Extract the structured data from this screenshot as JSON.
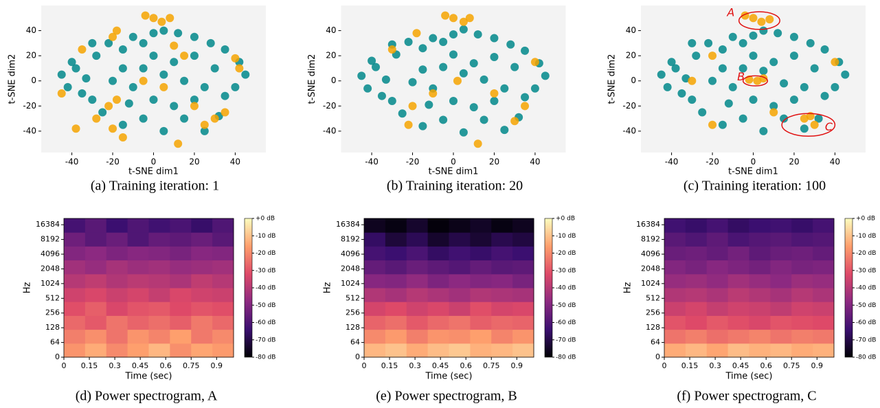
{
  "chart_data": [
    {
      "type": "scatter",
      "caption": "(a) Training iteration: 1",
      "x_label": "t-SNE dim1",
      "y_label": "t-SNE dim2",
      "xlim": [
        -55,
        55
      ],
      "ylim": [
        -57,
        60
      ],
      "xticks": [
        -40,
        -20,
        0,
        20,
        40
      ],
      "yticks": [
        -40,
        -20,
        0,
        20,
        40
      ],
      "background": "#f3f3f3",
      "series": [
        {
          "color": "#00878a",
          "x": [
            -45,
            -42,
            -38,
            -35,
            -33,
            -40,
            -30,
            -28,
            -22,
            -15,
            -10,
            -5,
            0,
            5,
            12,
            20,
            28,
            35,
            42,
            45,
            40,
            35,
            25,
            15,
            5,
            -5,
            -15,
            -20,
            -10,
            0,
            10,
            20,
            -25,
            -15,
            -5,
            5,
            15,
            25,
            32,
            0,
            10,
            -12,
            30,
            20,
            -30
          ],
          "y": [
            5,
            -5,
            10,
            -10,
            2,
            15,
            -15,
            20,
            30,
            25,
            35,
            30,
            38,
            40,
            38,
            35,
            30,
            25,
            15,
            5,
            -5,
            -12,
            -5,
            0,
            5,
            10,
            10,
            0,
            -5,
            -15,
            -20,
            -15,
            -25,
            -35,
            -30,
            -40,
            -30,
            -40,
            -28,
            20,
            15,
            -18,
            10,
            20,
            30
          ]
        },
        {
          "color": "#f5a300",
          "x": [
            0,
            4,
            -4,
            8,
            -20,
            -18,
            -38,
            -20,
            -15,
            25,
            30,
            40,
            42,
            -22,
            -18,
            12,
            -35,
            15,
            5,
            -45,
            20,
            35,
            -5,
            10,
            -28
          ],
          "y": [
            50,
            47,
            52,
            50,
            35,
            40,
            -38,
            -38,
            -45,
            -35,
            -30,
            18,
            10,
            -20,
            -15,
            -50,
            25,
            20,
            -5,
            -10,
            -20,
            -25,
            0,
            28,
            -30
          ]
        }
      ]
    },
    {
      "type": "scatter",
      "caption": "(b) Training iteration: 20",
      "x_label": "t-SNE dim1",
      "y_label": "t-SNE dim2",
      "xlim": [
        -55,
        55
      ],
      "ylim": [
        -57,
        60
      ],
      "xticks": [
        -40,
        -20,
        0,
        20,
        40
      ],
      "yticks": [
        -40,
        -20,
        0,
        20,
        40
      ],
      "background": "#f3f3f3",
      "series": [
        {
          "color": "#00878a",
          "x": [
            -45,
            -42,
            -38,
            -35,
            -33,
            -40,
            -30,
            -28,
            -22,
            -15,
            -10,
            -5,
            0,
            5,
            12,
            20,
            28,
            35,
            42,
            45,
            40,
            35,
            25,
            15,
            5,
            -5,
            -15,
            -20,
            -10,
            0,
            10,
            20,
            -25,
            -15,
            -5,
            5,
            15,
            25,
            32,
            0,
            10,
            -12,
            30,
            20,
            -30
          ],
          "y": [
            4,
            -6,
            11,
            -12,
            1,
            16,
            -16,
            21,
            31,
            26,
            34,
            31,
            37,
            41,
            37,
            34,
            29,
            24,
            14,
            4,
            -6,
            -13,
            -6,
            1,
            6,
            11,
            9,
            -1,
            -6,
            -16,
            -21,
            -16,
            -26,
            -36,
            -31,
            -41,
            -31,
            -39,
            -29,
            21,
            14,
            -19,
            11,
            19,
            29
          ]
        },
        {
          "color": "#f5a300",
          "x": [
            0,
            5,
            -4,
            8,
            -20,
            -22,
            30,
            40,
            -18,
            12,
            2,
            -10,
            20,
            -30,
            35
          ],
          "y": [
            50,
            47,
            52,
            50,
            -20,
            -35,
            -32,
            15,
            38,
            -50,
            0,
            -10,
            -10,
            25,
            -20
          ]
        }
      ]
    },
    {
      "type": "scatter",
      "caption": "(c) Training iteration: 100",
      "x_label": "t-SNE dim1",
      "y_label": "t-SNE dim2",
      "xlim": [
        -55,
        55
      ],
      "ylim": [
        -57,
        60
      ],
      "xticks": [
        -40,
        -20,
        0,
        20,
        40
      ],
      "yticks": [
        -40,
        -20,
        0,
        20,
        40
      ],
      "background": "#f3f3f3",
      "series": [
        {
          "color": "#00878a",
          "x": [
            -45,
            -42,
            -38,
            -35,
            -33,
            -40,
            -30,
            -28,
            -22,
            -15,
            -10,
            -5,
            0,
            5,
            12,
            20,
            28,
            35,
            42,
            45,
            40,
            35,
            25,
            15,
            5,
            -5,
            -15,
            -20,
            -10,
            0,
            10,
            20,
            -25,
            -15,
            -5,
            5,
            15,
            25,
            32,
            0,
            10,
            -12,
            30,
            20,
            -30
          ],
          "y": [
            5,
            -5,
            10,
            -10,
            2,
            15,
            -15,
            20,
            30,
            25,
            35,
            30,
            36,
            40,
            38,
            35,
            30,
            25,
            15,
            5,
            -5,
            -12,
            -5,
            -2,
            8,
            10,
            10,
            0,
            -5,
            -15,
            -20,
            -15,
            -25,
            -35,
            -30,
            -40,
            -30,
            -38,
            -30,
            20,
            15,
            -18,
            10,
            20,
            30
          ]
        },
        {
          "color": "#f5a300",
          "x": [
            0,
            4,
            -4,
            8,
            2,
            5,
            -2,
            25,
            30,
            28,
            -20,
            40,
            -20,
            10,
            -30
          ],
          "y": [
            50,
            47,
            52,
            49,
            0,
            2,
            1,
            -30,
            -35,
            -28,
            -35,
            15,
            20,
            -25,
            0
          ]
        }
      ],
      "annotations": [
        {
          "text": "A",
          "x": -11,
          "y": 54
        },
        {
          "text": "B",
          "x": -6,
          "y": 3
        },
        {
          "text": "C",
          "x": 37,
          "y": -37
        }
      ],
      "ellipses": [
        {
          "cx": 3,
          "cy": 48,
          "rx": 10,
          "ry": 7,
          "color": "#e01010"
        },
        {
          "cx": 1,
          "cy": 0,
          "rx": 6,
          "ry": 4,
          "color": "#e01010"
        },
        {
          "cx": 27,
          "cy": -35,
          "rx": 13,
          "ry": 9,
          "color": "#e01010"
        }
      ]
    },
    {
      "type": "heatmap",
      "caption": "(d) Power spectrogram, A",
      "x_label": "Time (sec)",
      "y_label": "Hz",
      "xlim": [
        0,
        1.0
      ],
      "ylim": [
        0,
        22050
      ],
      "yscale": "symlog2",
      "linthresh": 64,
      "xticks": [
        0,
        0.15,
        0.3,
        0.45,
        0.6,
        0.75,
        0.9
      ],
      "yticks": [
        0,
        64,
        128,
        256,
        512,
        1024,
        2048,
        4096,
        8192,
        16384
      ],
      "clim": [
        -80,
        0
      ],
      "colormap": [
        "#000004",
        "#3b0f70",
        "#8c2981",
        "#de4968",
        "#fe9f6d",
        "#fcfdbf"
      ],
      "cticks": [
        {
          "value": 0,
          "label": "+0 dB"
        },
        {
          "value": -10,
          "label": "-10 dB"
        },
        {
          "value": -20,
          "label": "-20 dB"
        },
        {
          "value": -30,
          "label": "-30 dB"
        },
        {
          "value": -40,
          "label": "-40 dB"
        },
        {
          "value": -50,
          "label": "-50 dB"
        },
        {
          "value": -60,
          "label": "-60 dB"
        },
        {
          "value": -70,
          "label": "-70 dB"
        },
        {
          "value": -80,
          "label": "-80 dB"
        }
      ],
      "z": [
        [
          -18,
          -14,
          -20,
          -16,
          -12,
          -19,
          -15,
          -17
        ],
        [
          -22,
          -19,
          -24,
          -18,
          -21,
          -16,
          -23,
          -20
        ],
        [
          -26,
          -29,
          -24,
          -27,
          -25,
          -28,
          -23,
          -26
        ],
        [
          -31,
          -28,
          -33,
          -30,
          -29,
          -32,
          -30,
          -31
        ],
        [
          -35,
          -33,
          -36,
          -34,
          -37,
          -33,
          -35,
          -36
        ],
        [
          -40,
          -38,
          -41,
          -39,
          -40,
          -42,
          -38,
          -40
        ],
        [
          -44,
          -46,
          -43,
          -45,
          -44,
          -46,
          -45,
          -44
        ],
        [
          -50,
          -48,
          -51,
          -49,
          -50,
          -52,
          -49,
          -50
        ],
        [
          -54,
          -58,
          -55,
          -60,
          -56,
          -57,
          -55,
          -58
        ],
        [
          -62,
          -58,
          -64,
          -60,
          -63,
          -61,
          -65,
          -60
        ]
      ]
    },
    {
      "type": "heatmap",
      "caption": "(e) Power spectrogram, B",
      "x_label": "Time (sec)",
      "y_label": "Hz",
      "xlim": [
        0,
        1.0
      ],
      "ylim": [
        0,
        22050
      ],
      "yscale": "symlog2",
      "linthresh": 64,
      "xticks": [
        0,
        0.15,
        0.3,
        0.45,
        0.6,
        0.75,
        0.9
      ],
      "yticks": [
        0,
        64,
        128,
        256,
        512,
        1024,
        2048,
        4096,
        8192,
        16384
      ],
      "clim": [
        -80,
        0
      ],
      "colormap": [
        "#000004",
        "#3b0f70",
        "#8c2981",
        "#de4968",
        "#fe9f6d",
        "#fcfdbf"
      ],
      "cticks": [
        {
          "value": 0,
          "label": "+0 dB"
        },
        {
          "value": -10,
          "label": "-10 dB"
        },
        {
          "value": -20,
          "label": "-20 dB"
        },
        {
          "value": -30,
          "label": "-30 dB"
        },
        {
          "value": -40,
          "label": "-40 dB"
        },
        {
          "value": -50,
          "label": "-50 dB"
        },
        {
          "value": -60,
          "label": "-60 dB"
        },
        {
          "value": -70,
          "label": "-70 dB"
        },
        {
          "value": -80,
          "label": "-80 dB"
        }
      ],
      "z": [
        [
          -12,
          -10,
          -14,
          -11,
          -9,
          -13,
          -12,
          -10
        ],
        [
          -20,
          -17,
          -22,
          -18,
          -19,
          -16,
          -21,
          -18
        ],
        [
          -27,
          -25,
          -29,
          -26,
          -24,
          -28,
          -26,
          -27
        ],
        [
          -34,
          -32,
          -35,
          -33,
          -36,
          -31,
          -34,
          -33
        ],
        [
          -41,
          -43,
          -40,
          -42,
          -44,
          -41,
          -42,
          -43
        ],
        [
          -49,
          -50,
          -47,
          -51,
          -48,
          -50,
          -49,
          -52
        ],
        [
          -56,
          -58,
          -55,
          -57,
          -59,
          -56,
          -58,
          -57
        ],
        [
          -62,
          -64,
          -61,
          -66,
          -63,
          -65,
          -62,
          -64
        ],
        [
          -66,
          -72,
          -68,
          -74,
          -70,
          -73,
          -69,
          -71
        ],
        [
          -76,
          -78,
          -74,
          -79,
          -77,
          -75,
          -78,
          -76
        ]
      ]
    },
    {
      "type": "heatmap",
      "caption": "(f) Power spectrogram, C",
      "x_label": "Time (sec)",
      "y_label": "Hz",
      "xlim": [
        0,
        1.0
      ],
      "ylim": [
        0,
        22050
      ],
      "yscale": "symlog2",
      "linthresh": 64,
      "xticks": [
        0,
        0.15,
        0.3,
        0.45,
        0.6,
        0.75,
        0.9
      ],
      "yticks": [
        0,
        64,
        128,
        256,
        512,
        1024,
        2048,
        4096,
        8192,
        16384
      ],
      "clim": [
        -80,
        0
      ],
      "colormap": [
        "#000004",
        "#3b0f70",
        "#8c2981",
        "#de4968",
        "#fe9f6d",
        "#fcfdbf"
      ],
      "cticks": [
        {
          "value": 0,
          "label": "+0 dB"
        },
        {
          "value": -10,
          "label": "-10 dB"
        },
        {
          "value": -20,
          "label": "-20 dB"
        },
        {
          "value": -30,
          "label": "-30 dB"
        },
        {
          "value": -40,
          "label": "-40 dB"
        },
        {
          "value": -50,
          "label": "-50 dB"
        },
        {
          "value": -60,
          "label": "-60 dB"
        },
        {
          "value": -70,
          "label": "-70 dB"
        },
        {
          "value": -80,
          "label": "-80 dB"
        }
      ],
      "z": [
        [
          -14,
          -12,
          -15,
          -11,
          -13,
          -12,
          -14,
          -13
        ],
        [
          -24,
          -22,
          -25,
          -23,
          -21,
          -24,
          -22,
          -23
        ],
        [
          -30,
          -32,
          -29,
          -31,
          -33,
          -30,
          -31,
          -32
        ],
        [
          -36,
          -34,
          -37,
          -35,
          -36,
          -38,
          -35,
          -36
        ],
        [
          -41,
          -40,
          -42,
          -39,
          -41,
          -43,
          -40,
          -42
        ],
        [
          -46,
          -45,
          -47,
          -44,
          -46,
          -48,
          -45,
          -46
        ],
        [
          -50,
          -52,
          -49,
          -51,
          -53,
          -50,
          -52,
          -51
        ],
        [
          -55,
          -54,
          -56,
          -53,
          -57,
          -55,
          -54,
          -56
        ],
        [
          -58,
          -60,
          -57,
          -61,
          -59,
          -58,
          -60,
          -59
        ],
        [
          -63,
          -65,
          -62,
          -66,
          -64,
          -63,
          -65,
          -62
        ]
      ]
    }
  ]
}
